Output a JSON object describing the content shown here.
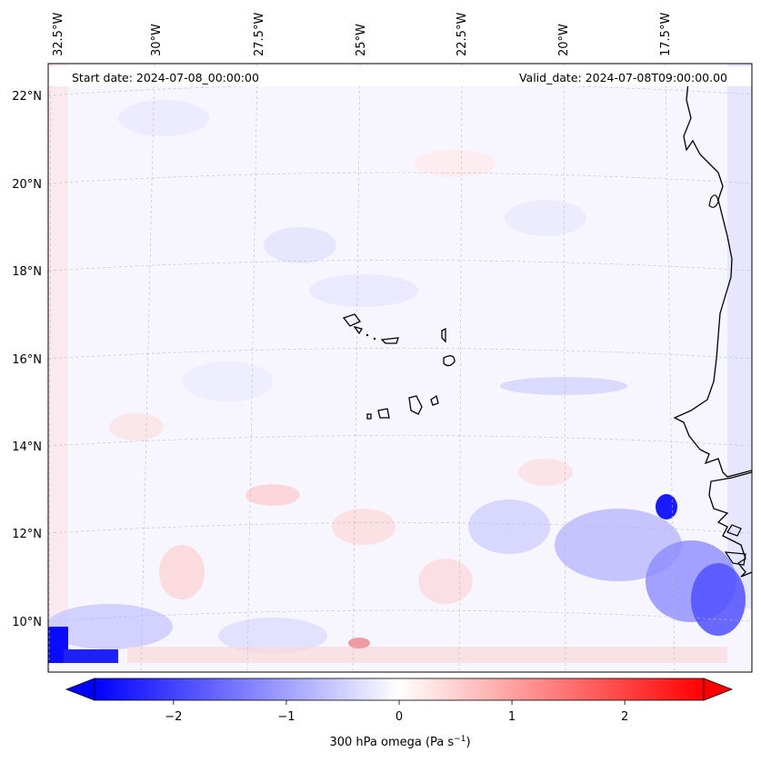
{
  "map": {
    "header": {
      "start_date": "Start date: 2024-07-08_00:00:00",
      "valid_date": "Valid_date: 2024-07-08T09:00:00.00"
    },
    "longitude_labels": [
      "32.5°W",
      "30°W",
      "27.5°W",
      "25°W",
      "22.5°W",
      "20°W",
      "17.5°W"
    ],
    "latitude_labels": [
      "22°N",
      "20°N",
      "18°N",
      "16°N",
      "14°N",
      "12°N",
      "10°N"
    ],
    "region": {
      "lon_min": -33.0,
      "lon_max": -15.0,
      "lat_min": 8.9,
      "lat_max": 22.8
    },
    "colors": {
      "negative": "#0000ff",
      "zero": "#ffffff",
      "positive": "#ff0000",
      "coast": "#000000"
    }
  },
  "colorbar": {
    "ticks": [
      "−2",
      "−1",
      "0",
      "1",
      "2"
    ],
    "tick_values": [
      -2,
      -1,
      0,
      1,
      2
    ],
    "range": [
      -2.7,
      2.7
    ],
    "extend": "both",
    "label_main": "300 hPa omega (Pa s",
    "label_exp": "−1",
    "label_end": ")"
  }
}
